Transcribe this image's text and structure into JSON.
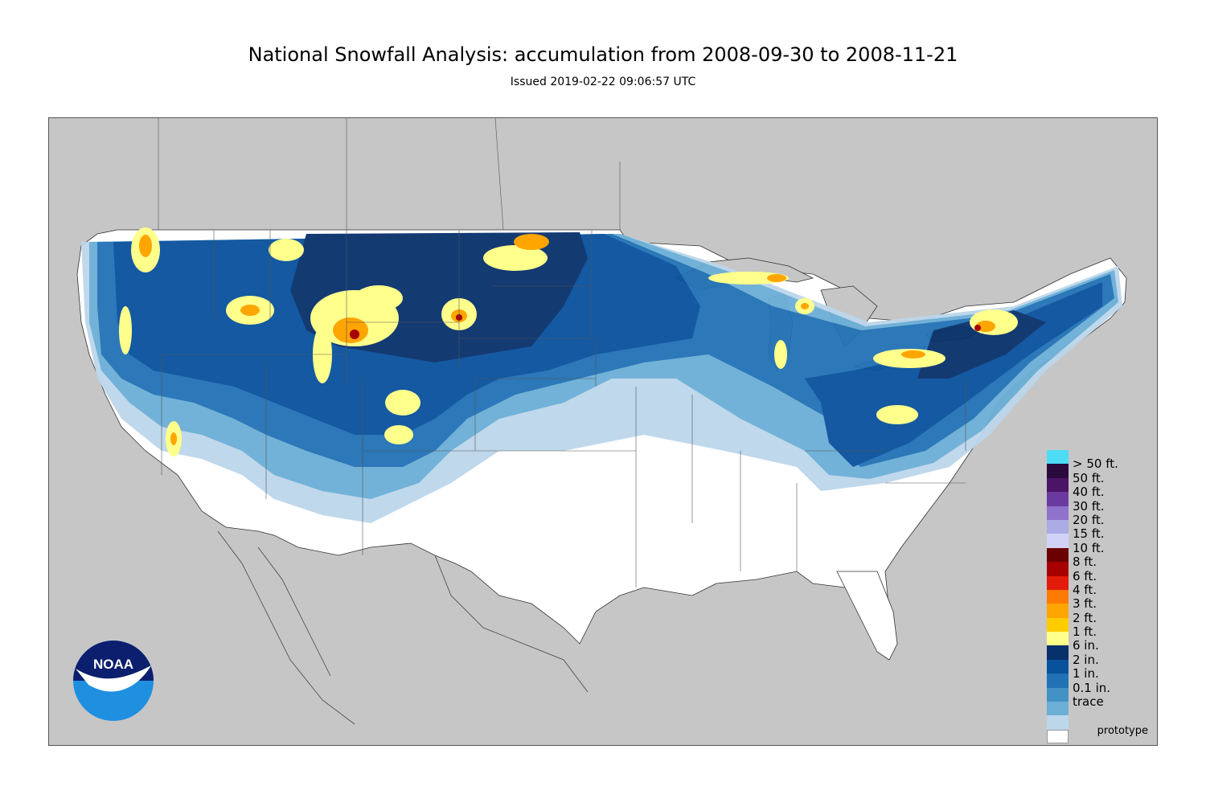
{
  "header": {
    "title": "National Snowfall Analysis: accumulation from 2008-09-30 to 2008-11-21",
    "subtitle": "Issued 2019-02-22 09:06:57 UTC"
  },
  "map": {
    "background_color": "#c6c6c6",
    "land_color": "#ffffff"
  },
  "legend": {
    "items": [
      {
        "label": "> 50 ft.",
        "color": "#4ddcf5"
      },
      {
        "label": "50 ft.",
        "color": "#2b0a3d"
      },
      {
        "label": "40 ft.",
        "color": "#4b1466"
      },
      {
        "label": "30 ft.",
        "color": "#6a3aa0"
      },
      {
        "label": "20 ft.",
        "color": "#8f72cc"
      },
      {
        "label": "15 ft.",
        "color": "#ababe6"
      },
      {
        "label": "10 ft.",
        "color": "#d2d2f8"
      },
      {
        "label": "8 ft.",
        "color": "#6a0000"
      },
      {
        "label": "6 ft.",
        "color": "#a60000"
      },
      {
        "label": "4 ft.",
        "color": "#e21b0a"
      },
      {
        "label": "3 ft.",
        "color": "#ff7a00"
      },
      {
        "label": "2 ft.",
        "color": "#ffa500"
      },
      {
        "label": "1 ft.",
        "color": "#ffcc00"
      },
      {
        "label": "6 in.",
        "color": "#ffff8c"
      },
      {
        "label": "2 in.",
        "color": "#08306b"
      },
      {
        "label": "1 in.",
        "color": "#08519c"
      },
      {
        "label": "0.1 in.",
        "color": "#2171b5"
      },
      {
        "label": "trace",
        "color": "#4292c6"
      }
    ],
    "extra_swatches": [
      "#6baed6",
      "#bcd6ea",
      "#ffffff"
    ]
  },
  "logo": {
    "text": "NOAA"
  },
  "footer": {
    "note": "prototype"
  }
}
